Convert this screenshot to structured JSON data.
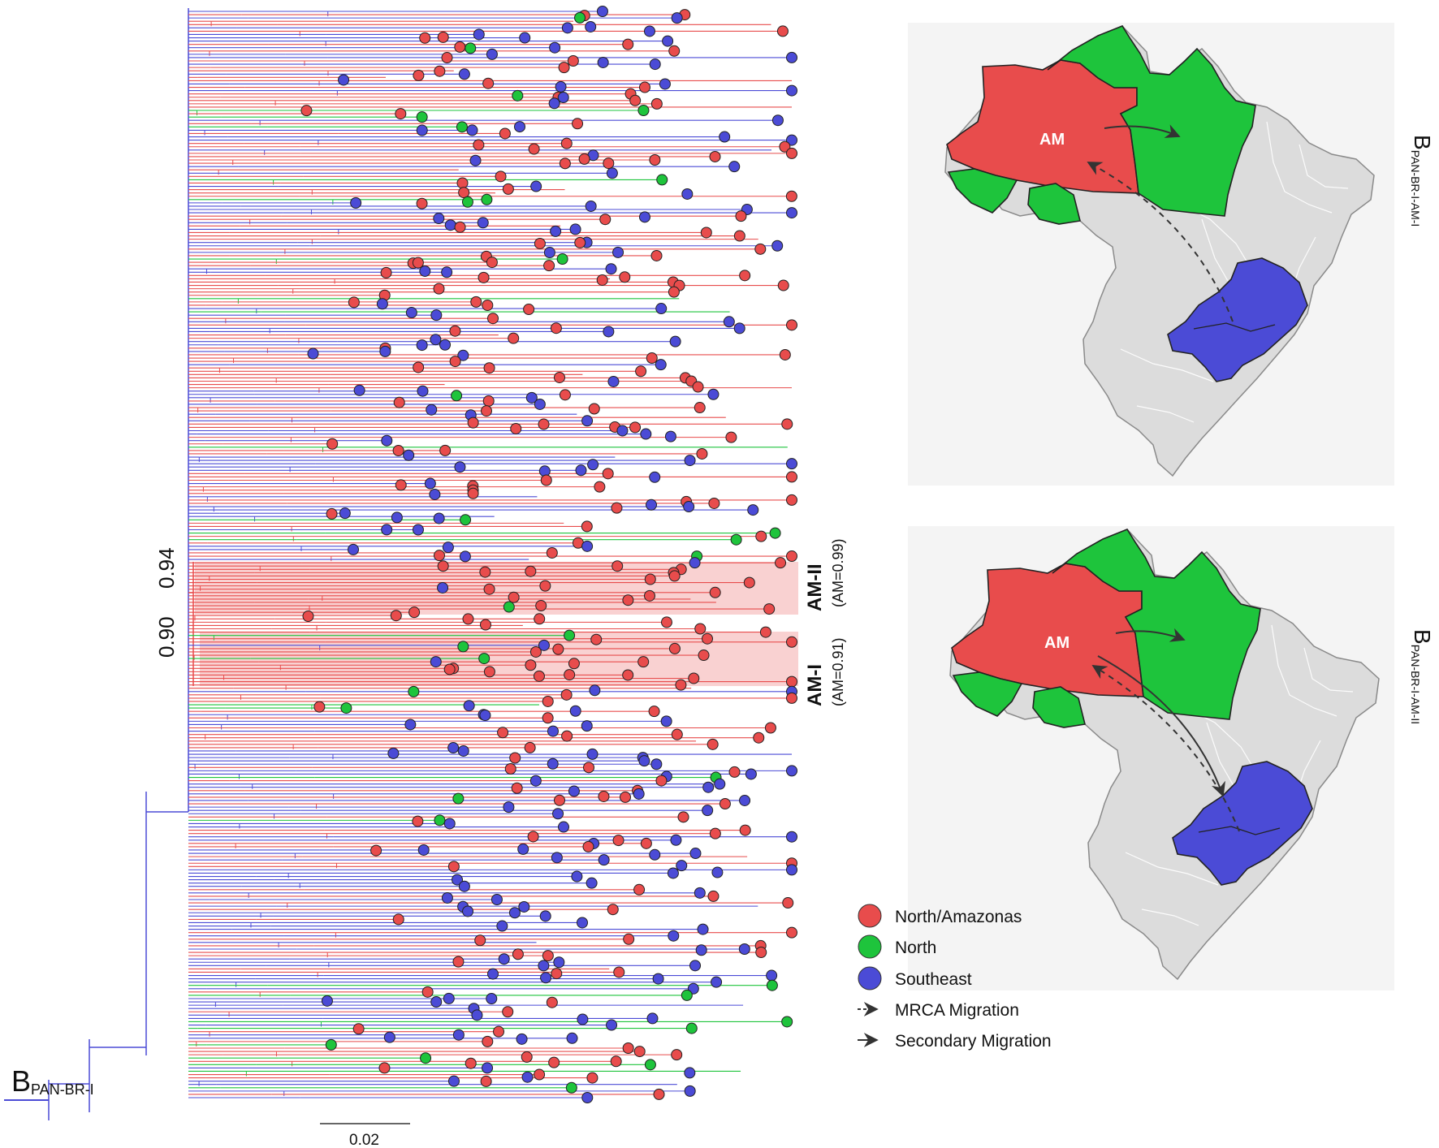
{
  "colors": {
    "north_amazonas": "#e84c4c",
    "north": "#1ec43c",
    "southeast": "#4b4bd6",
    "highlight": "#f8c6c6"
  },
  "tree": {
    "root_label_main": "B",
    "root_label_sub": "PAN-BR-I",
    "scale_bar": {
      "label": "0.02",
      "value": 0.02
    },
    "support_values": [
      "0.94",
      "0.90"
    ],
    "clades": [
      {
        "name": "AM-II",
        "posterior": "(AM=0.99)"
      },
      {
        "name": "AM-I",
        "posterior": "(AM=0.91)"
      }
    ]
  },
  "maps": [
    {
      "label_main": "B",
      "label_sub": "PAN-BR-I-AM-I",
      "region_label": "AM",
      "mrca_to_am": true,
      "secondary_to": [
        "north"
      ]
    },
    {
      "label_main": "B",
      "label_sub": "PAN-BR-I-AM-II",
      "region_label": "AM",
      "mrca_to_am": true,
      "secondary_to": [
        "north",
        "southeast"
      ]
    }
  ],
  "legend": {
    "items": [
      {
        "label": "North/Amazonas",
        "color_key": "north_amazonas",
        "kind": "circle"
      },
      {
        "label": "North",
        "color_key": "north",
        "kind": "circle"
      },
      {
        "label": "Southeast",
        "color_key": "southeast",
        "kind": "circle"
      },
      {
        "label": "MRCA Migration",
        "kind": "dashed-arrow"
      },
      {
        "label": "Secondary Migration",
        "kind": "solid-arrow"
      }
    ]
  }
}
